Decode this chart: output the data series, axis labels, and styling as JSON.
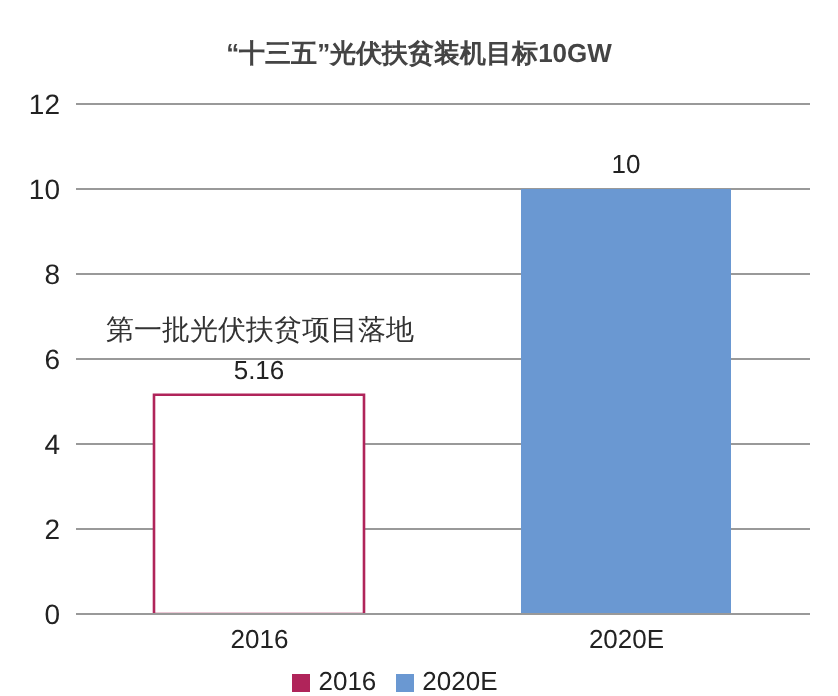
{
  "chart_data": {
    "type": "bar",
    "title": "“十三五”光伏扶贫装机目标10GW",
    "categories": [
      "2016",
      "2020E"
    ],
    "series": [
      {
        "name": "2016",
        "color": "#b0245a",
        "values": [
          5.16,
          null
        ]
      },
      {
        "name": "2020E",
        "color": "#6a98d2",
        "values": [
          null,
          10
        ]
      }
    ],
    "ylim": [
      0,
      12
    ],
    "yticks": [
      0,
      2,
      4,
      6,
      8,
      10,
      12
    ],
    "grid": "y",
    "legend": "bottom",
    "data_labels": true,
    "annotations": [
      {
        "text": "第一批光伏扶贫项目落地",
        "x": "2016",
        "y": 5.16
      }
    ]
  }
}
